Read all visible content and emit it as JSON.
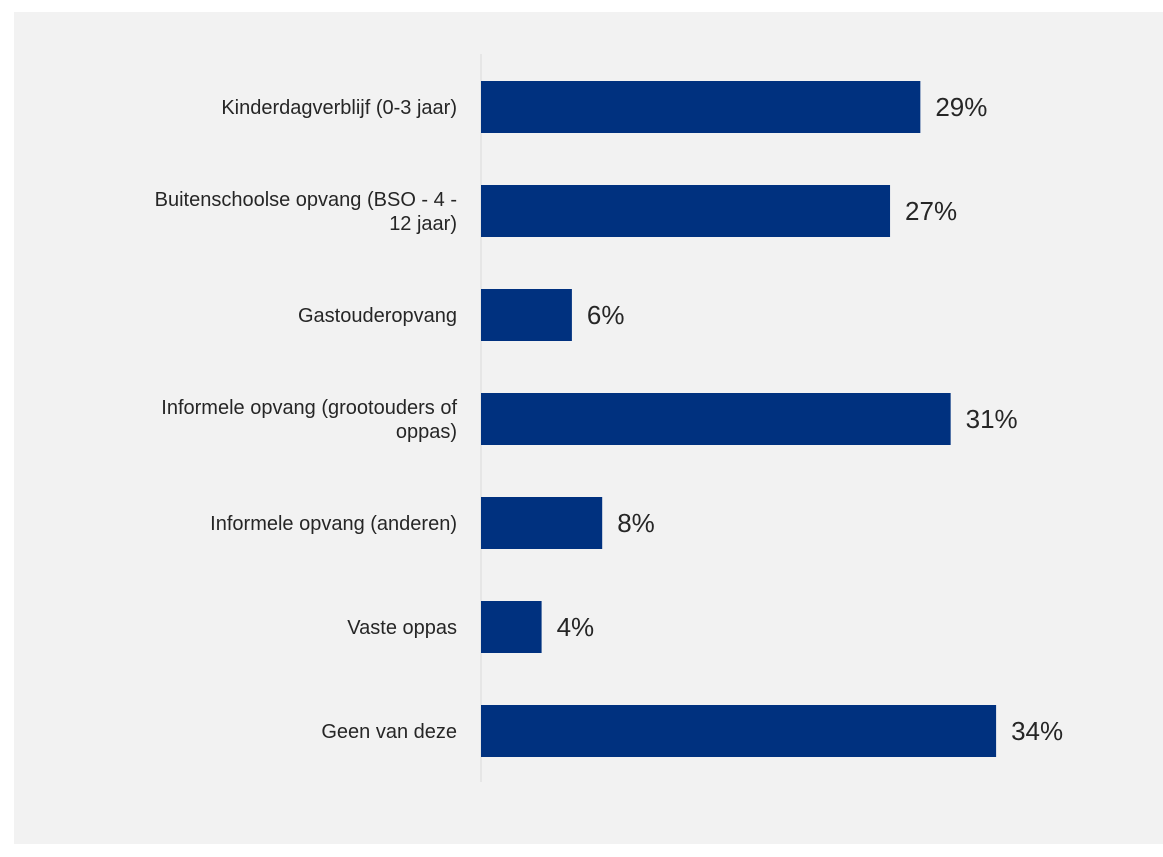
{
  "chart_data": {
    "type": "bar",
    "orientation": "horizontal",
    "categories": [
      [
        "Kinderdagverblijf (0-3 jaar)"
      ],
      [
        "Buitenschoolse opvang (BSO - 4 -",
        "12 jaar)"
      ],
      [
        "Gastouderopvang"
      ],
      [
        "Informele opvang (grootouders of",
        "oppas)"
      ],
      [
        "Informele opvang (anderen)"
      ],
      [
        "Vaste oppas"
      ],
      [
        "Geen van deze"
      ]
    ],
    "values": [
      29,
      27,
      6,
      31,
      8,
      4,
      34
    ],
    "value_labels": [
      "29%",
      "27%",
      "6%",
      "31%",
      "8%",
      "4%",
      "34%"
    ],
    "unit": "%",
    "xlim": [
      0,
      34
    ],
    "grid": false,
    "legend": "none",
    "colors": {
      "bar": "#00317f",
      "background": "#f2f2f2",
      "axis": "#d9d9d9",
      "text": "#262626"
    }
  }
}
